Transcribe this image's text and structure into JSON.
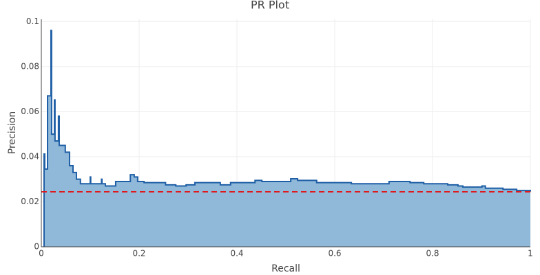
{
  "chart_data": {
    "type": "step-area",
    "title": "PR Plot",
    "x_label": "Recall",
    "y_label": "Precision",
    "x": [
      0.0056,
      0.007,
      0.0127,
      0.0197,
      0.021,
      0.0268,
      0.028,
      0.035,
      0.0366,
      0.049,
      0.0577,
      0.0648,
      0.0718,
      0.08,
      0.1,
      0.101,
      0.123,
      0.124,
      0.131,
      0.152,
      0.182,
      0.19,
      0.197,
      0.21,
      0.254,
      0.275,
      0.296,
      0.314,
      0.366,
      0.387,
      0.437,
      0.451,
      0.51,
      0.524,
      0.563,
      0.634,
      0.711,
      0.754,
      0.782,
      0.831,
      0.852,
      0.862,
      0.901,
      0.908,
      0.944,
      0.972,
      1.0
    ],
    "values": [
      0.0412,
      0.0345,
      0.067,
      0.096,
      0.05,
      0.0652,
      0.047,
      0.058,
      0.045,
      0.042,
      0.036,
      0.033,
      0.03,
      0.028,
      0.031,
      0.028,
      0.03,
      0.028,
      0.027,
      0.029,
      0.032,
      0.031,
      0.029,
      0.0285,
      0.0275,
      0.027,
      0.0275,
      0.0285,
      0.0275,
      0.0285,
      0.0295,
      0.029,
      0.0302,
      0.0295,
      0.0285,
      0.028,
      0.029,
      0.0285,
      0.028,
      0.0275,
      0.027,
      0.0265,
      0.027,
      0.026,
      0.0255,
      0.025,
      0.0245
    ],
    "line_color": "#1f5fa5",
    "fill_color": "#8fb8d9",
    "baseline": 0.0244,
    "baseline_color": "#e0191c",
    "xlim": [
      0,
      1
    ],
    "ylim": [
      0,
      0.101
    ],
    "xticks": [
      0,
      0.2,
      0.4,
      0.6,
      0.8,
      1
    ],
    "yticks": [
      0,
      0.02,
      0.04,
      0.06,
      0.08,
      0.1
    ],
    "grid": true
  }
}
